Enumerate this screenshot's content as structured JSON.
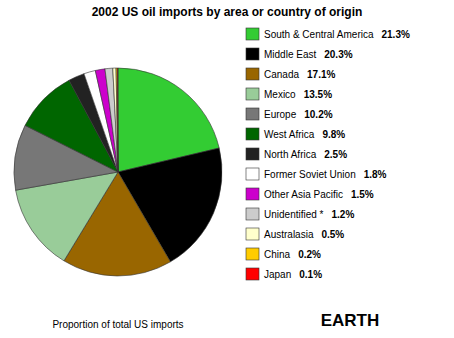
{
  "chart_data": {
    "type": "pie",
    "title": "2002 US oil imports by area or country of origin",
    "subtitle": "Proportion of total US imports",
    "annotations": [
      "EARTH"
    ],
    "categories": [
      "South & Central America",
      "Middle East",
      "Canada",
      "Mexico",
      "Europe",
      "West Africa",
      "North Africa",
      "Former Soviet Union",
      "Other Asia Pacific",
      "Unidentified *",
      "Australasia",
      "China",
      "Japan"
    ],
    "values": [
      21.3,
      20.3,
      17.1,
      13.5,
      10.2,
      9.8,
      2.5,
      1.8,
      1.5,
      1.2,
      0.5,
      0.2,
      0.1
    ],
    "value_labels": [
      "21.3%",
      "20.3%",
      "17.1%",
      "13.5%",
      "10.2%",
      "9.8%",
      "2.5%",
      "1.8%",
      "1.5%",
      "1.2%",
      "0.5%",
      "0.2%",
      "0.1%"
    ],
    "colors": [
      "#33cc33",
      "#000000",
      "#996600",
      "#99cc99",
      "#777777",
      "#006600",
      "#222222",
      "#ffffff",
      "#cc00cc",
      "#cccccc",
      "#ffffcc",
      "#ffcc00",
      "#ff0000"
    ],
    "legend": "right"
  }
}
